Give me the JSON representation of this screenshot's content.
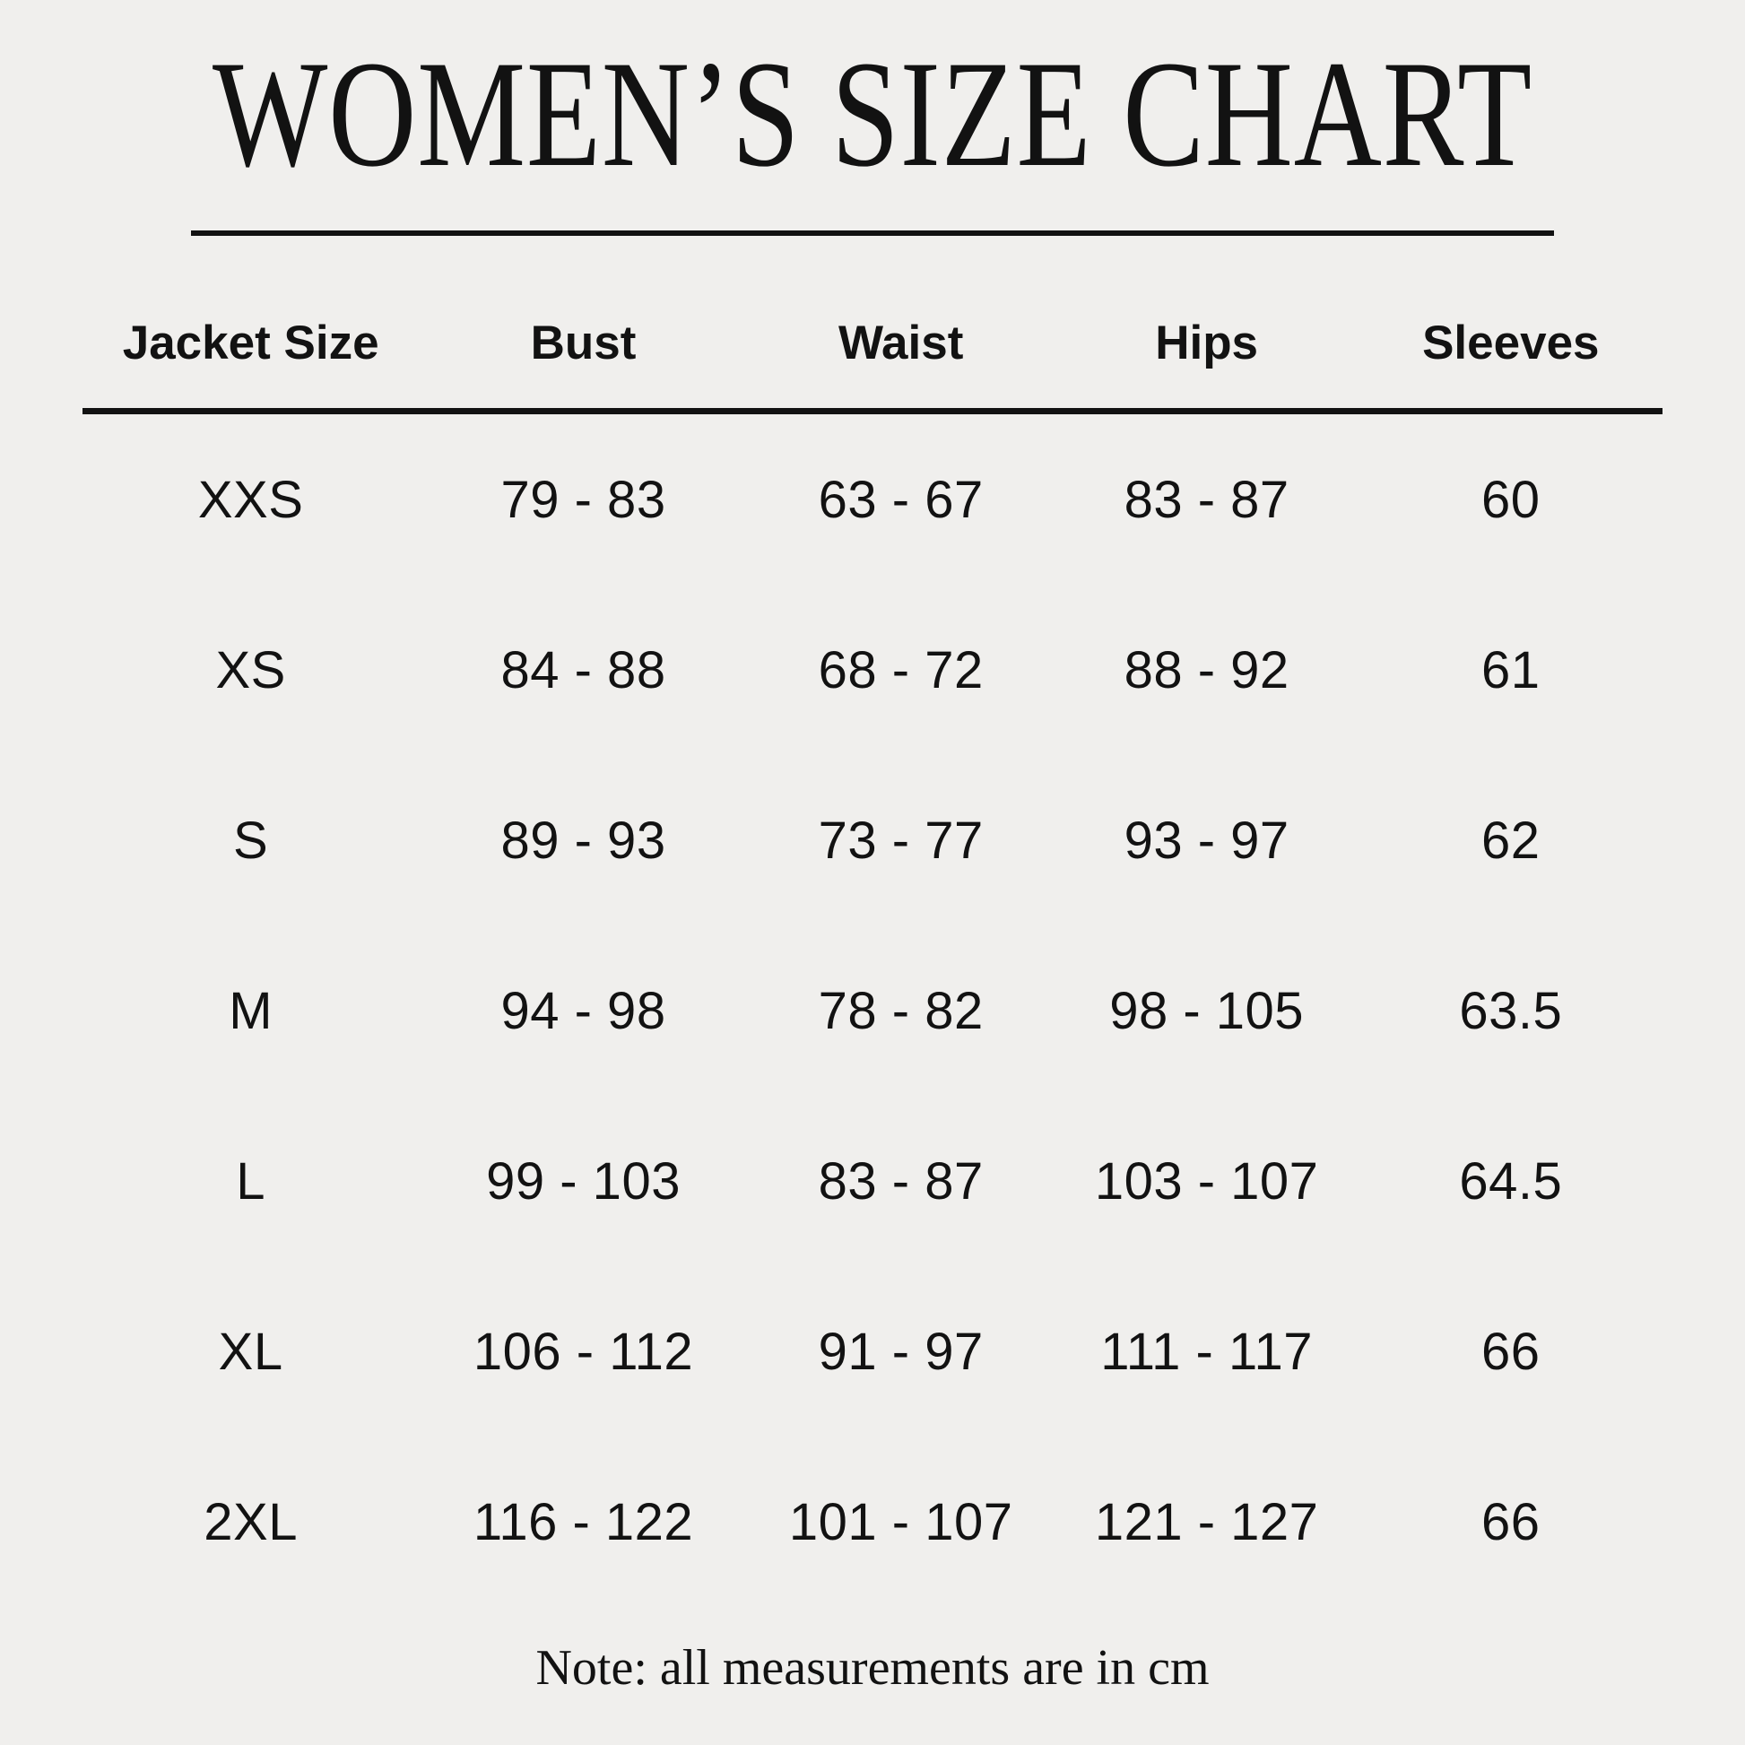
{
  "title": "WOMEN’S SIZE CHART",
  "table": {
    "columns": [
      "Jacket Size",
      "Bust",
      "Waist",
      "Hips",
      "Sleeves"
    ],
    "rows": [
      {
        "size": "XXS",
        "bust": "79 - 83",
        "waist": "63 - 67",
        "hips": "83 - 87",
        "sleeves": "60"
      },
      {
        "size": "XS",
        "bust": "84 - 88",
        "waist": "68 - 72",
        "hips": "88 - 92",
        "sleeves": "61"
      },
      {
        "size": "S",
        "bust": "89 - 93",
        "waist": "73 - 77",
        "hips": "93 - 97",
        "sleeves": "62"
      },
      {
        "size": "M",
        "bust": "94 - 98",
        "waist": "78 - 82",
        "hips": "98 - 105",
        "sleeves": "63.5"
      },
      {
        "size": "L",
        "bust": "99 - 103",
        "waist": "83 - 87",
        "hips": "103 - 107",
        "sleeves": "64.5"
      },
      {
        "size": "XL",
        "bust": "106 - 112",
        "waist": "91 - 97",
        "hips": "111 - 117",
        "sleeves": "66"
      },
      {
        "size": "2XL",
        "bust": "116 - 122",
        "waist": "101 - 107",
        "hips": "121 - 127",
        "sleeves": "66"
      }
    ]
  },
  "note": "Note: all measurements are in cm",
  "colors": {
    "background": "#f0efed",
    "text": "#121212",
    "rule": "#121212"
  }
}
